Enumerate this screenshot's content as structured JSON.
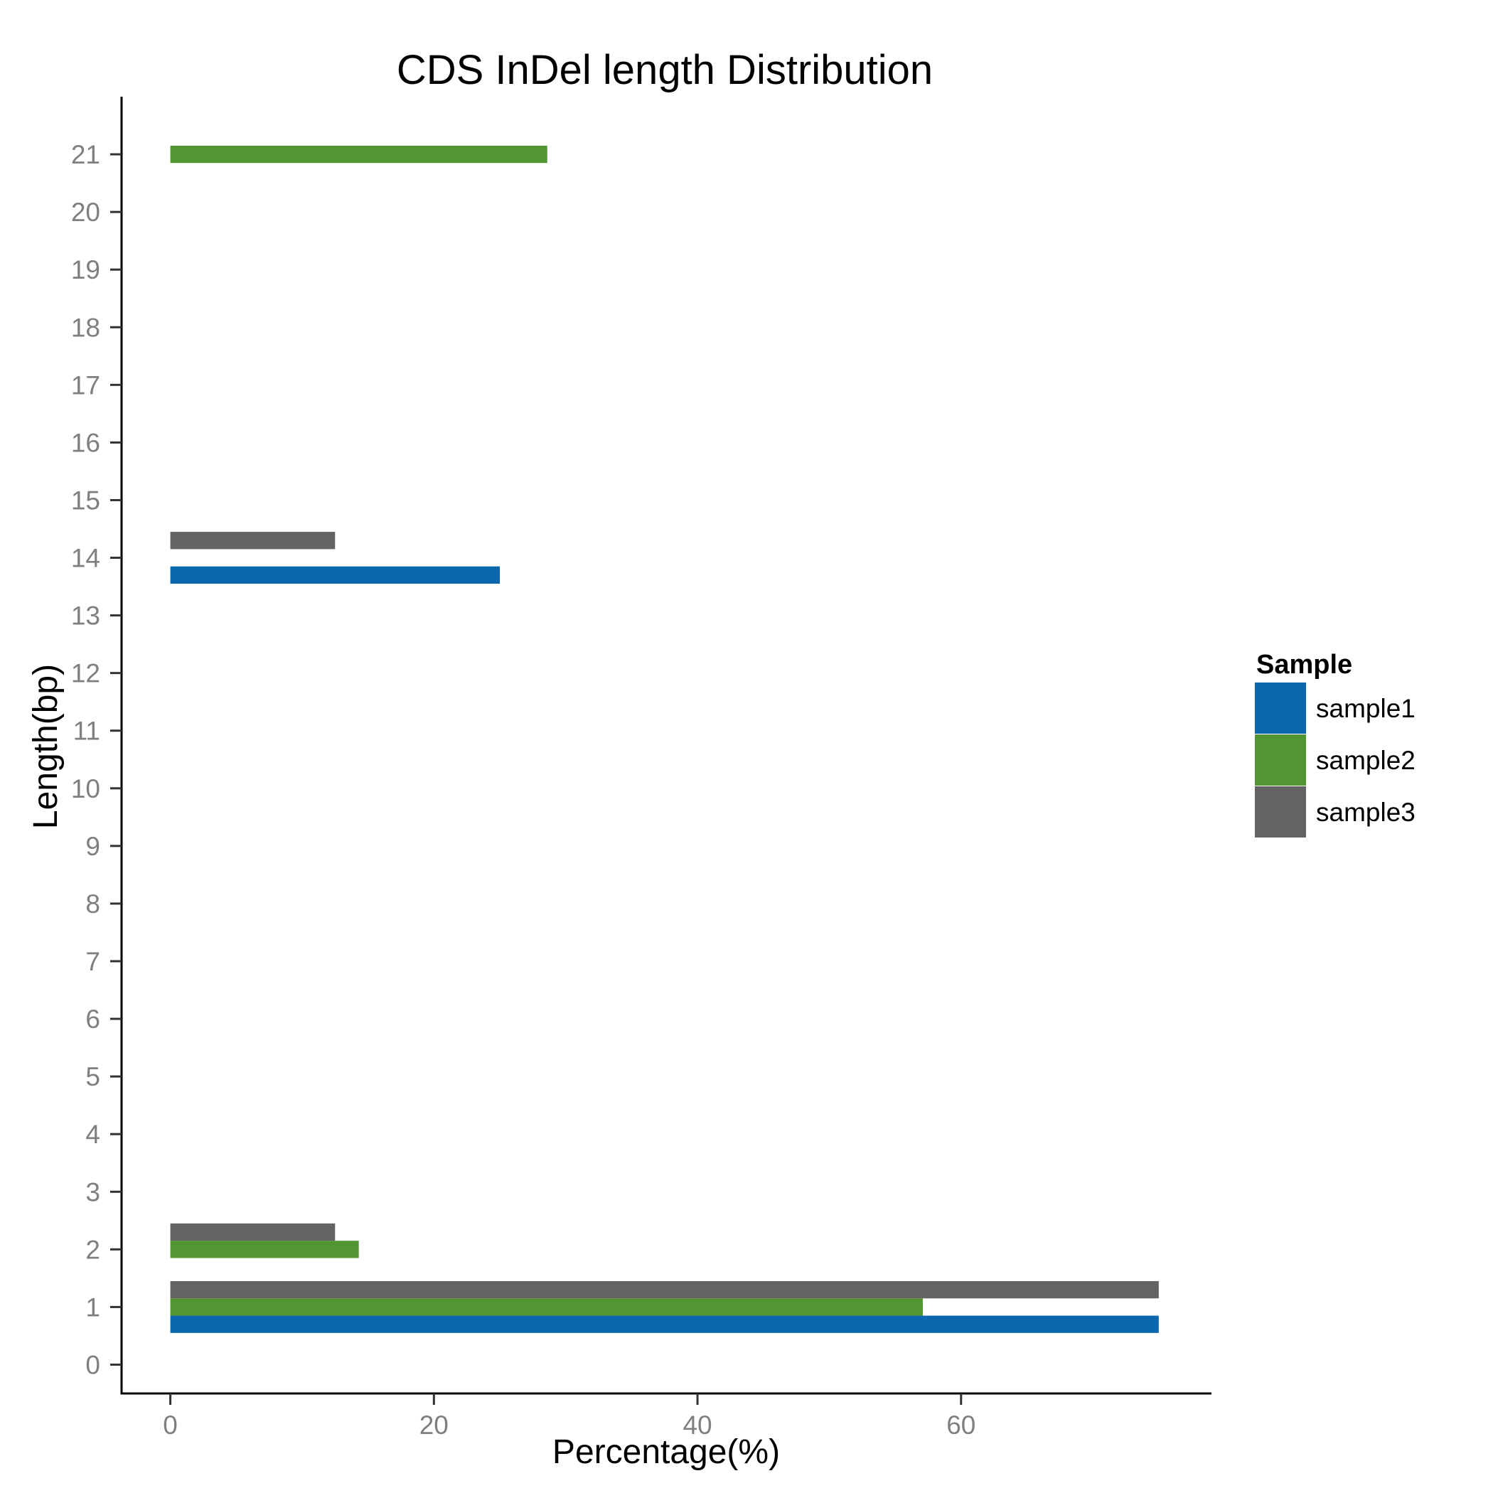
{
  "chart_data": {
    "type": "bar",
    "orientation": "horizontal",
    "title": "CDS InDel length Distribution",
    "xlabel": "Percentage(%)",
    "ylabel": "Length(bp)",
    "xlim": [
      -3.7,
      79
    ],
    "ylim": [
      -0.5,
      22
    ],
    "xticks": [
      0,
      20,
      40,
      60
    ],
    "yticks": [
      0,
      1,
      2,
      3,
      4,
      5,
      6,
      7,
      8,
      9,
      10,
      11,
      12,
      13,
      14,
      15,
      16,
      17,
      18,
      19,
      20,
      21
    ],
    "grid": false,
    "legend": {
      "title": "Sample",
      "placement": "right"
    },
    "series": [
      {
        "name": "sample1",
        "color": "#0b68af",
        "points": [
          {
            "length": 1,
            "value": 75.0
          },
          {
            "length": 14,
            "value": 25.0
          }
        ]
      },
      {
        "name": "sample2",
        "color": "#529634",
        "points": [
          {
            "length": 1,
            "value": 57.1
          },
          {
            "length": 2,
            "value": 14.3
          },
          {
            "length": 21,
            "value": 28.6
          }
        ]
      },
      {
        "name": "sample3",
        "color": "#636363",
        "points": [
          {
            "length": 1,
            "value": 75.0
          },
          {
            "length": 2,
            "value": 12.5
          },
          {
            "length": 14,
            "value": 12.5
          }
        ]
      }
    ]
  }
}
